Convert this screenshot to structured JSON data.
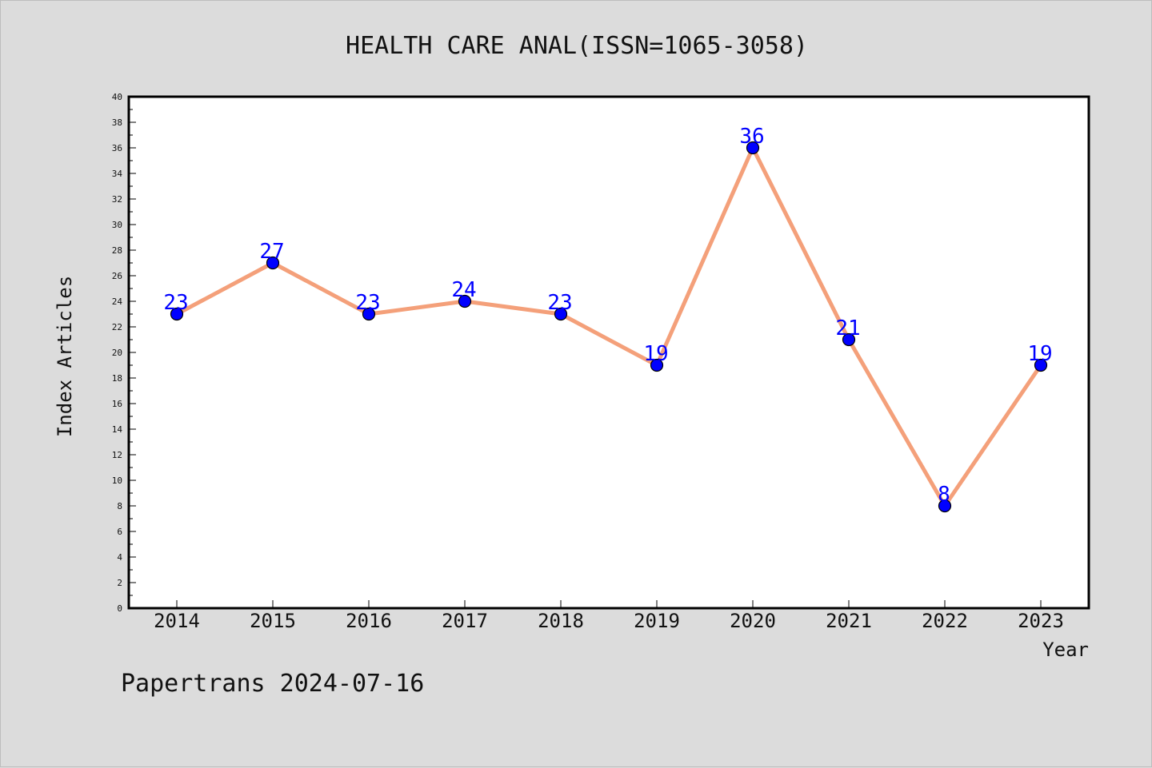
{
  "chart_data": {
    "type": "line",
    "title": "HEALTH CARE ANAL(ISSN=1065-3058)",
    "xlabel": "Year",
    "ylabel": "Index Articles",
    "categories": [
      "2014",
      "2015",
      "2016",
      "2017",
      "2018",
      "2019",
      "2020",
      "2021",
      "2022",
      "2023"
    ],
    "series": [
      {
        "values": [
          23,
          27,
          23,
          24,
          23,
          19,
          36,
          21,
          8,
          19
        ]
      }
    ],
    "ylim": [
      0,
      40
    ],
    "yticks": [
      0,
      2,
      4,
      6,
      8,
      10,
      12,
      14,
      16,
      18,
      20,
      22,
      24,
      26,
      28,
      30,
      32,
      34,
      36,
      38,
      40
    ],
    "grid": false,
    "legend": "none",
    "data_labels": true,
    "colors": {
      "line": "#f4a07a",
      "marker": "#0000ff",
      "label": "#0000ff",
      "background": "#dcdcdc",
      "plot": "#ffffff"
    }
  },
  "footer": "Papertrans 2024-07-16"
}
